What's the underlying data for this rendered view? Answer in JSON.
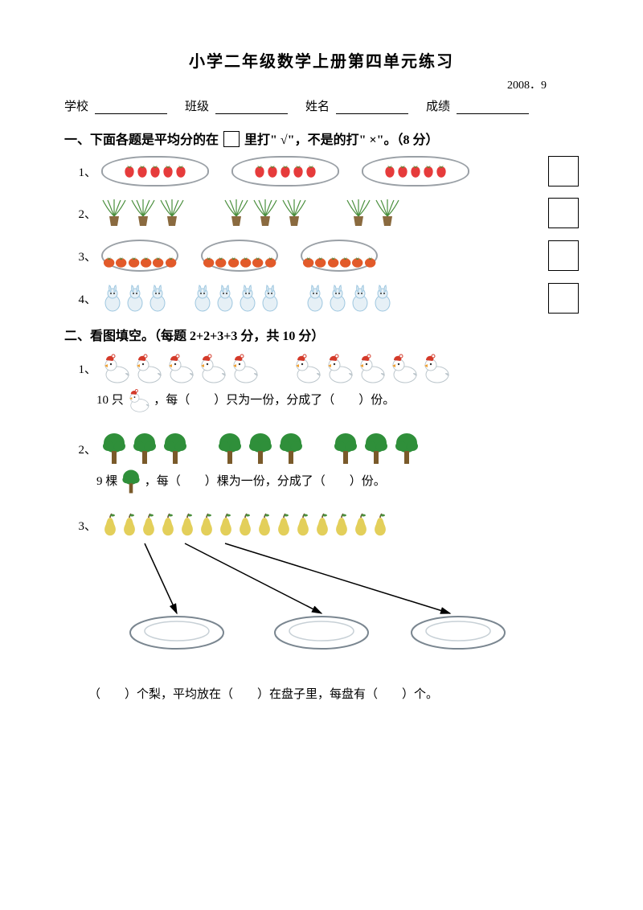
{
  "title": "小学二年级数学上册第四单元练习",
  "date": "2008．9",
  "meta": {
    "school": "学校",
    "class": "班级",
    "name": "姓名",
    "score": "成绩"
  },
  "section1": {
    "heading_pre": "一、下面各题是平均分的在",
    "heading_post": "里打\" √\"，不是的打\" ×\"。（8 分）",
    "q1": {
      "num": "1、",
      "groups": [
        5,
        5,
        5
      ]
    },
    "q2": {
      "num": "2、",
      "groups": [
        3,
        3,
        2
      ]
    },
    "q3": {
      "num": "3、",
      "groups": [
        6,
        6,
        6
      ]
    },
    "q4": {
      "num": "4、",
      "groups": [
        3,
        4,
        4
      ]
    }
  },
  "section2": {
    "heading": "二、看图填空。（每题 2+2+3+3 分，共 10 分）",
    "q1": {
      "num": "1、",
      "groups": [
        5,
        5
      ],
      "text_pre": "10 只",
      "text_mid": "，每（　　）只为一份，分成了（　　）份。"
    },
    "q2": {
      "num": "2、",
      "groups": [
        3,
        3,
        3
      ],
      "text_pre": "9 棵",
      "text_mid": "，每（　　）棵为一份，分成了（　　）份。"
    },
    "q3": {
      "num": "3、",
      "count": 15,
      "text": "（　　）个梨，平均放在（　　）在盘子里，每盘有（　　）个。"
    }
  },
  "colors": {
    "strawberry_body": "#e63b3b",
    "strawberry_leaf": "#3aa23a",
    "plant_leaf": "#4a8f3d",
    "plant_pot": "#8a6a3f",
    "tomato": "#e25a2a",
    "tomato_leaf": "#3a8a3a",
    "rabbit_body": "#e6f0f6",
    "rabbit_shade": "#9ec7e0",
    "duck_body": "#ffffff",
    "duck_hat": "#d43a2a",
    "duck_beak": "#f0a030",
    "tree_crown": "#2f8f3a",
    "tree_trunk": "#7a5a2a",
    "pear": "#e3cf5a",
    "pear_stem": "#6a4a2a",
    "plate_border": "#9aa0a6",
    "dish_shade": "#c7d0d6",
    "box_border": "#000000"
  }
}
